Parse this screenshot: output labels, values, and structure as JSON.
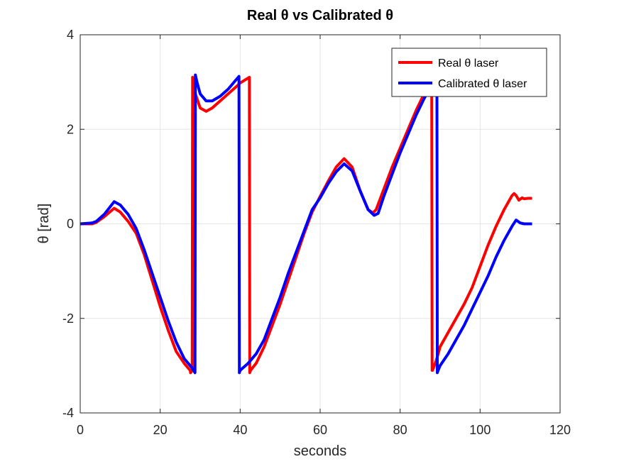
{
  "chart_data": {
    "type": "line",
    "title": "Real θ vs Calibrated θ",
    "xlabel": "seconds",
    "ylabel": "θ [rad]",
    "xlim": [
      0,
      120
    ],
    "ylim": [
      -4,
      4
    ],
    "xticks": [
      0,
      20,
      40,
      60,
      80,
      100,
      120
    ],
    "yticks": [
      -4,
      -2,
      0,
      2,
      4
    ],
    "grid": true,
    "legend_position": "top-right",
    "series": [
      {
        "name": "Real θ laser",
        "color": "#ff0000",
        "x": [
          0,
          3,
          4,
          6,
          8.5,
          10,
          12,
          14,
          16,
          18,
          20,
          22,
          24,
          26,
          27.5,
          27.6,
          28,
          28.1,
          28.6,
          30,
          31.5,
          33,
          35,
          37,
          39,
          40,
          42.3,
          42.4,
          42.6,
          44,
          46,
          48,
          50,
          52,
          54,
          56,
          58,
          60,
          62,
          64,
          66,
          68,
          70,
          72,
          73.2,
          74,
          76,
          78,
          80,
          82,
          84,
          86,
          87.5,
          87.9,
          88,
          88.1,
          89,
          90,
          92,
          94,
          96,
          98,
          100,
          102,
          104,
          106,
          107,
          108,
          108.5,
          109,
          109.7,
          110,
          110.5,
          111,
          112,
          113
        ],
        "y": [
          0.0,
          0.0,
          0.03,
          0.15,
          0.33,
          0.25,
          0.05,
          -0.2,
          -0.65,
          -1.2,
          -1.75,
          -2.25,
          -2.7,
          -2.95,
          -3.1,
          -3.15,
          -3.1,
          3.1,
          2.8,
          2.45,
          2.38,
          2.45,
          2.6,
          2.75,
          2.9,
          2.98,
          3.1,
          -3.15,
          -3.1,
          -2.95,
          -2.6,
          -2.15,
          -1.7,
          -1.2,
          -0.7,
          -0.2,
          0.25,
          0.58,
          0.9,
          1.2,
          1.38,
          1.2,
          0.7,
          0.3,
          0.23,
          0.3,
          0.75,
          1.2,
          1.6,
          2.0,
          2.4,
          2.75,
          3.05,
          3.1,
          -3.1,
          -3.1,
          -2.9,
          -2.6,
          -2.3,
          -2.0,
          -1.7,
          -1.35,
          -0.9,
          -0.45,
          -0.05,
          0.3,
          0.45,
          0.6,
          0.64,
          0.6,
          0.5,
          0.52,
          0.55,
          0.53,
          0.54,
          0.54
        ]
      },
      {
        "name": "Calibrated θ laser",
        "color": "#0000ff",
        "x": [
          0,
          3,
          4,
          6,
          8.5,
          10,
          12,
          14,
          16,
          18,
          20,
          22,
          24,
          26,
          28,
          28.7,
          28.8,
          29.2,
          30,
          31.5,
          33,
          35,
          37,
          38.5,
          39.7,
          39.8,
          40,
          42,
          44,
          46,
          48,
          50,
          52,
          54,
          56,
          58,
          60,
          62,
          64,
          66,
          68,
          70,
          72,
          73.5,
          74.5,
          76,
          78,
          80,
          82,
          84,
          86,
          88,
          89.2,
          89.3,
          89.5,
          90,
          92,
          94,
          96,
          98,
          100,
          102,
          104,
          106,
          107,
          108,
          109,
          110,
          111,
          113
        ],
        "y": [
          0.0,
          0.02,
          0.05,
          0.2,
          0.47,
          0.4,
          0.2,
          -0.1,
          -0.55,
          -1.05,
          -1.55,
          -2.05,
          -2.5,
          -2.85,
          -3.05,
          -3.15,
          3.15,
          3.0,
          2.75,
          2.6,
          2.6,
          2.7,
          2.85,
          3.0,
          3.12,
          -3.15,
          -3.1,
          -2.95,
          -2.75,
          -2.45,
          -2.0,
          -1.55,
          -1.05,
          -0.6,
          -0.15,
          0.3,
          0.55,
          0.85,
          1.1,
          1.27,
          1.12,
          0.7,
          0.3,
          0.18,
          0.22,
          0.6,
          1.05,
          1.5,
          1.9,
          2.3,
          2.65,
          2.95,
          3.1,
          -3.15,
          -3.1,
          -3.0,
          -2.75,
          -2.45,
          -2.15,
          -1.8,
          -1.45,
          -1.1,
          -0.7,
          -0.35,
          -0.2,
          -0.05,
          0.08,
          0.02,
          0.0,
          0.0
        ]
      }
    ]
  }
}
